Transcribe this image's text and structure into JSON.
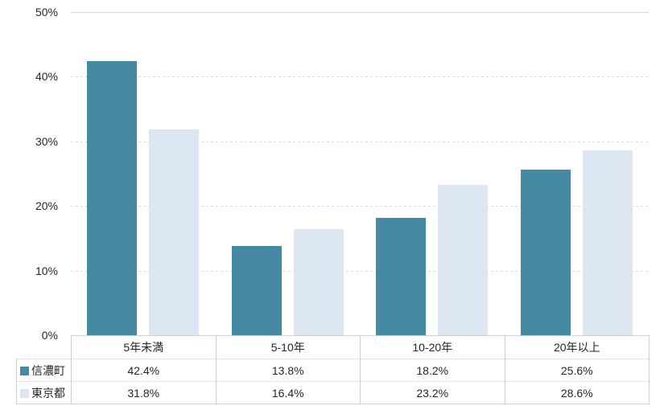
{
  "chart_data": {
    "type": "bar",
    "title": "",
    "categories": [
      "5年未満",
      "5-10年",
      "10-20年",
      "20年以上"
    ],
    "series": [
      {
        "name": "信濃町",
        "color": "#4689a3",
        "values": [
          42.4,
          13.8,
          18.2,
          25.6
        ]
      },
      {
        "name": "東京都",
        "color": "#dce7f3",
        "values": [
          31.8,
          16.4,
          23.2,
          28.6
        ]
      }
    ],
    "ylim": [
      0,
      50
    ],
    "yticks": [
      {
        "value": 0,
        "label": "0%"
      },
      {
        "value": 10,
        "label": "10%"
      },
      {
        "value": 20,
        "label": "20%"
      },
      {
        "value": 30,
        "label": "30%"
      },
      {
        "value": 40,
        "label": "40%"
      },
      {
        "value": 50,
        "label": "50%"
      }
    ],
    "grid": "horizontal-dashed",
    "legend_position": "table-left"
  },
  "legend_table": {
    "header": [
      "5年未満",
      "5-10年",
      "10-20年",
      "20年以上"
    ],
    "rows": [
      {
        "label": "信濃町",
        "marker_color": "#4689a3",
        "cells": [
          "42.4%",
          "13.8%",
          "18.2%",
          "25.6%"
        ]
      },
      {
        "label": "東京都",
        "marker_color": "#dce7f3",
        "cells": [
          "31.8%",
          "16.4%",
          "23.2%",
          "28.6%"
        ]
      }
    ]
  },
  "colors": {
    "grid": "#d9d9d9",
    "table_border": "#cfcfcf",
    "text": "#262626"
  }
}
